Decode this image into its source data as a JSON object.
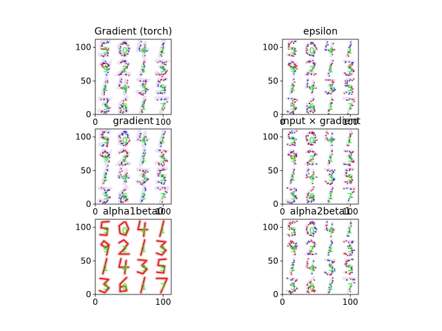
{
  "chart_data": {
    "type": "heatmap",
    "grid_digits": [
      [
        "5",
        "0",
        "4",
        "1"
      ],
      [
        "9",
        "2",
        "1",
        "3"
      ],
      [
        "1",
        "4",
        "3",
        "5"
      ],
      [
        "3",
        "6",
        "1",
        "7"
      ]
    ],
    "digit_label_color": "#00ff00",
    "axis": {
      "xlim": [
        0,
        112
      ],
      "ylim": [
        112,
        0
      ],
      "xticks": [
        0,
        100
      ],
      "yticks": [
        0,
        50,
        100
      ]
    },
    "panels": [
      {
        "title": "Gradient (torch)",
        "colormap": "bwr",
        "style": "gradient"
      },
      {
        "title": "epsilon",
        "colormap": "bwr",
        "style": "lrp"
      },
      {
        "title": "gradient",
        "colormap": "bwr",
        "style": "gradient"
      },
      {
        "title": "input × gradient",
        "colormap": "bwr",
        "style": "lrp"
      },
      {
        "title": "alpha1beta0",
        "colormap": "reds",
        "style": "positive"
      },
      {
        "title": "alpha2beta1",
        "colormap": "bwr",
        "style": "lrp"
      }
    ],
    "colors": {
      "positive": "#dd0000",
      "negative": "#1a1acc",
      "neutral": "#ffffff"
    }
  }
}
